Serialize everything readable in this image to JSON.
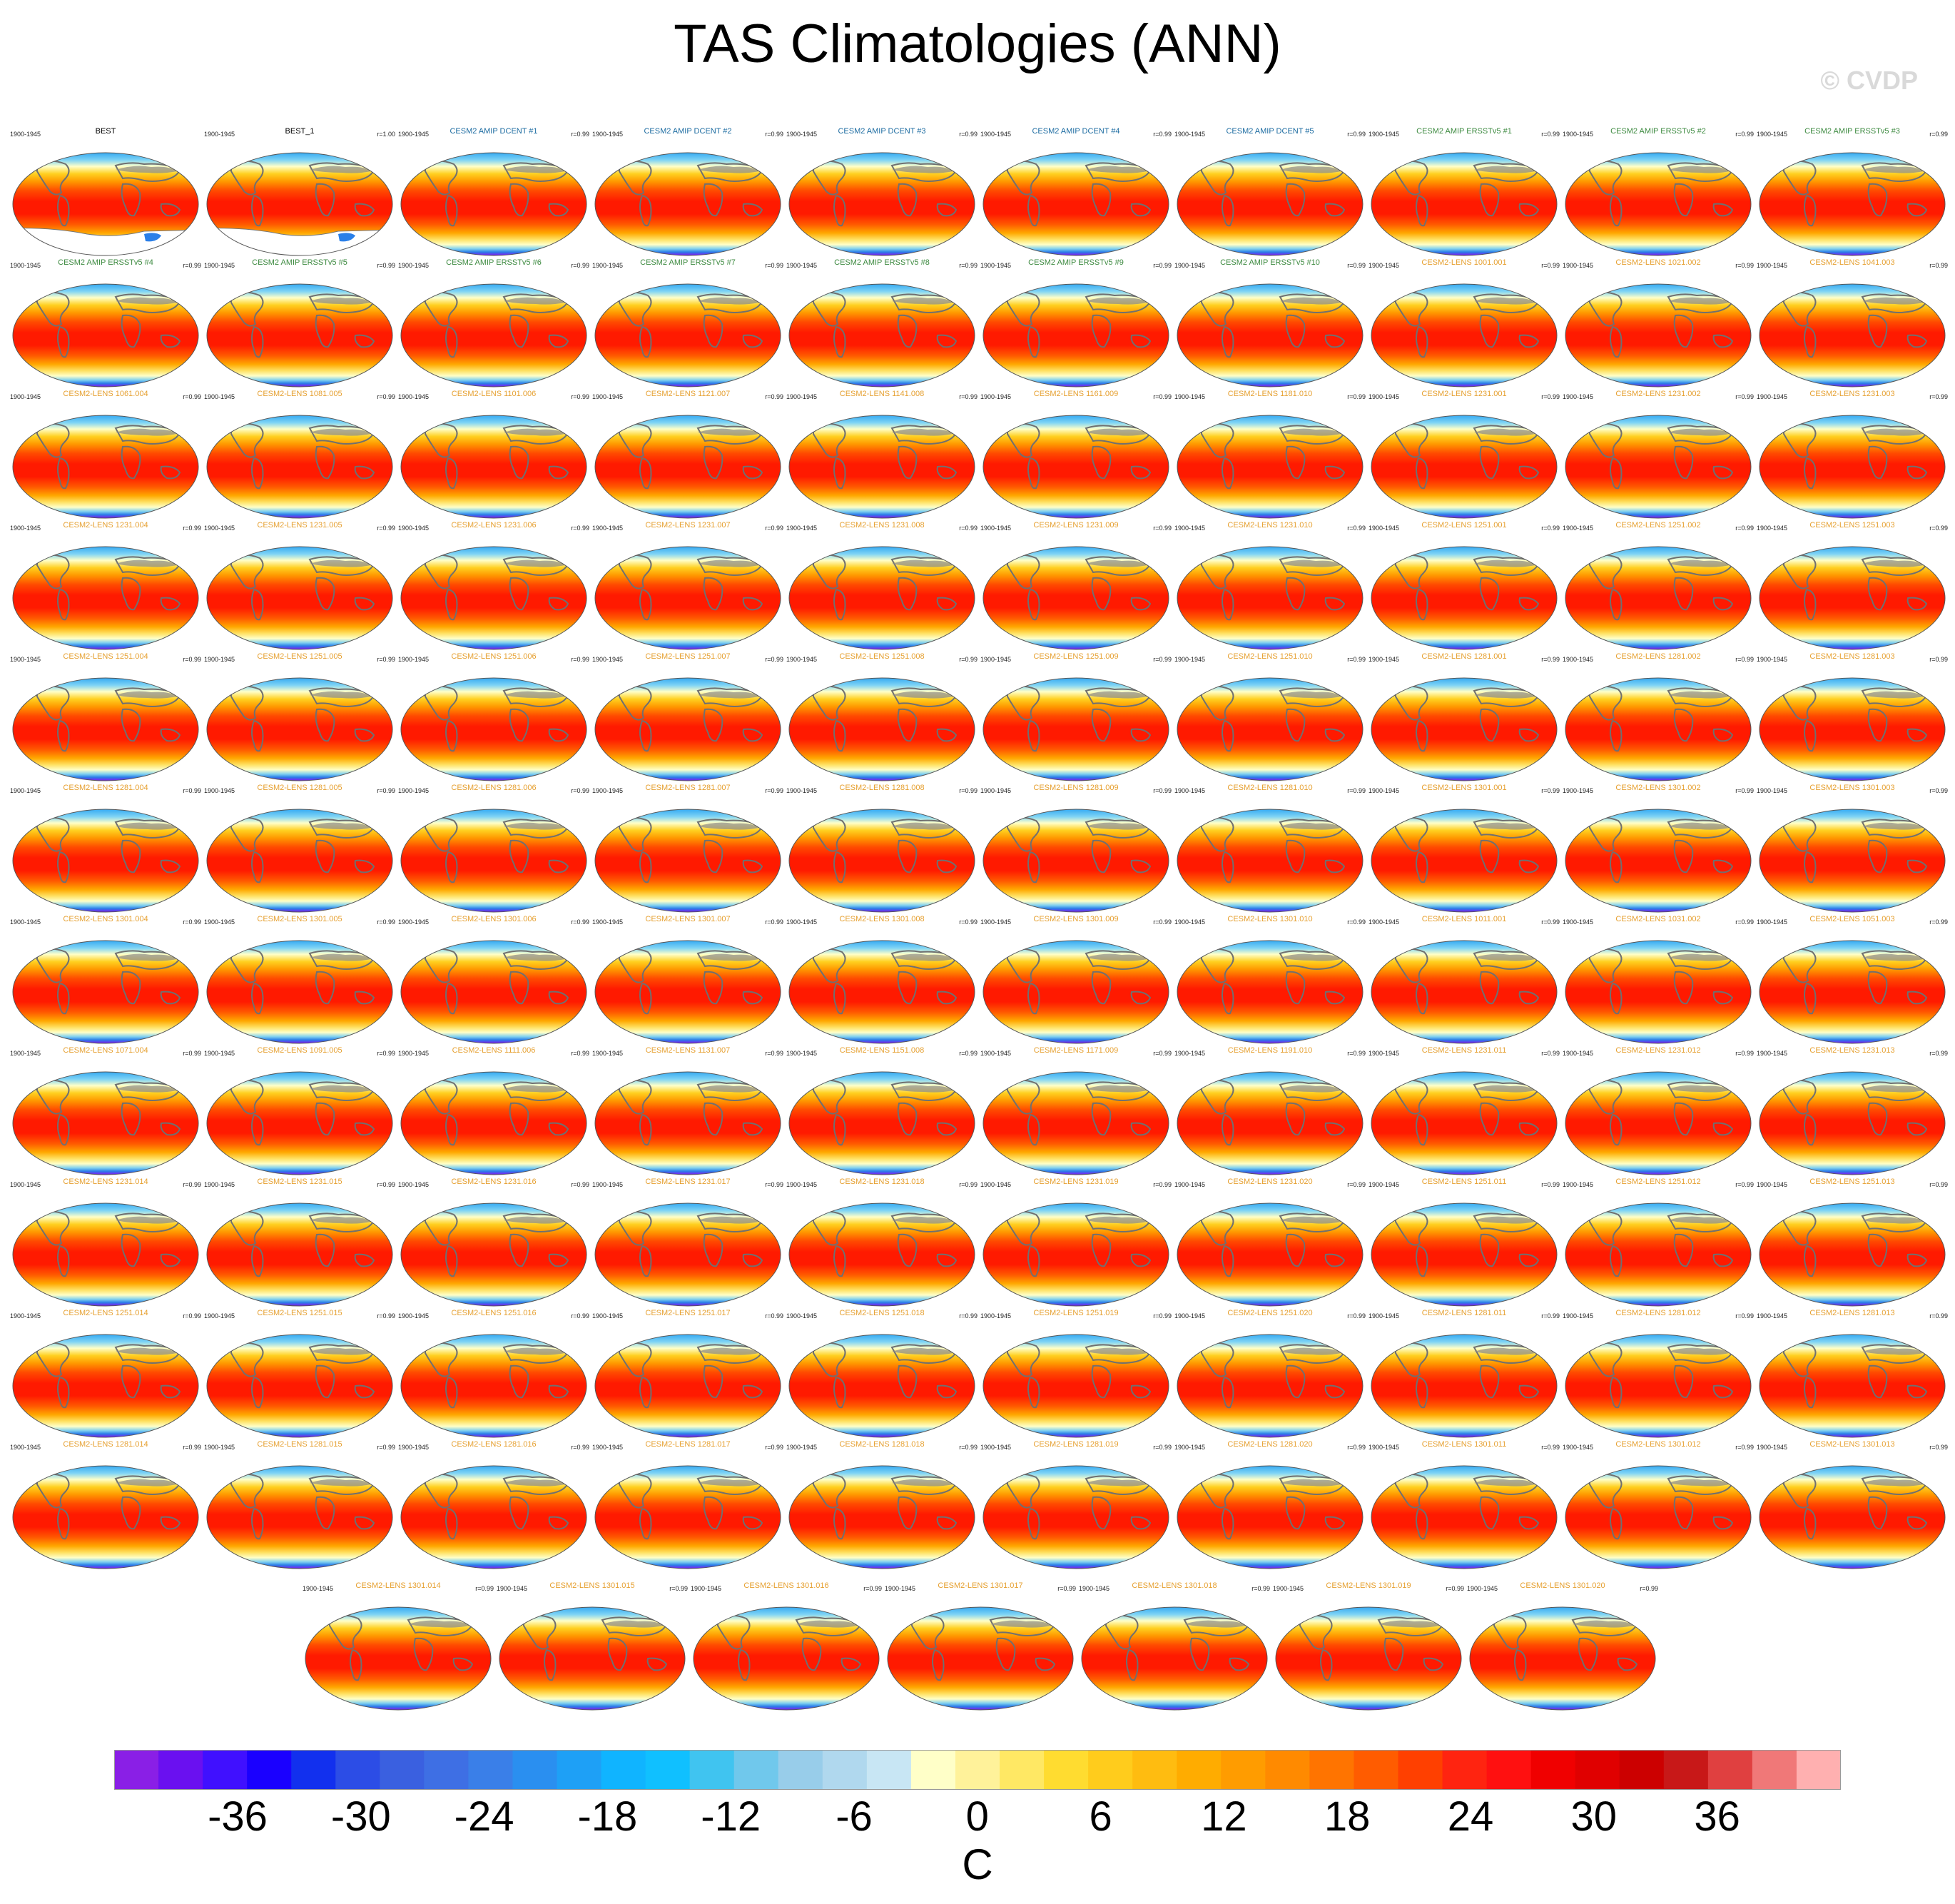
{
  "title": "TAS Climatologies (ANN)",
  "watermark": "© CVDP",
  "chart_data": {
    "type": "heatmap",
    "title": "TAS Climatologies (ANN)",
    "variable": "TAS",
    "season": "ANN",
    "projection": "global map",
    "colorbar": {
      "units": "C",
      "tick_labels": [
        "-36",
        "-30",
        "-24",
        "-18",
        "-12",
        "-6",
        "0",
        "6",
        "12",
        "18",
        "24",
        "30",
        "36"
      ],
      "tick_values": [
        -36,
        -30,
        -24,
        -18,
        -12,
        -6,
        0,
        6,
        12,
        18,
        24,
        30,
        36
      ],
      "colors": [
        "#8a1fe6",
        "#6a10f0",
        "#4010ff",
        "#1a00ff",
        "#1230ee",
        "#2c4de6",
        "#3a60e0",
        "#3e6fe4",
        "#3a7fe8",
        "#2a8ff0",
        "#1ea0f6",
        "#10b4ff",
        "#10c0ff",
        "#40c4f0",
        "#70c8ec",
        "#98cdea",
        "#b0d8ee",
        "#c8e6f4",
        "#ffffc8",
        "#fff29a",
        "#ffe864",
        "#ffdc30",
        "#ffcc1c",
        "#ffbc10",
        "#ffac00",
        "#ff9c00",
        "#ff8a00",
        "#ff7400",
        "#ff5c00",
        "#ff4000",
        "#ff2410",
        "#ff1010",
        "#f00000",
        "#e00000",
        "#cc0000",
        "#c81818",
        "#e04040",
        "#f07878",
        "#ffb0b0"
      ]
    },
    "title_colors": {
      "obs": "#000000",
      "dcent": "#1a6aa0",
      "ersst": "#3d8a40",
      "lens": "#e6a030"
    },
    "panels": [
      {
        "title": "BEST",
        "years": "1900-1945",
        "r": "",
        "group": "obs",
        "missing": true
      },
      {
        "title": "BEST_1",
        "years": "1900-1945",
        "r": "r=1.00",
        "group": "obs",
        "missing": true
      },
      {
        "title": "CESM2 AMIP DCENT #1",
        "years": "1900-1945",
        "r": "r=0.99",
        "group": "dcent"
      },
      {
        "title": "CESM2 AMIP DCENT #2",
        "years": "1900-1945",
        "r": "r=0.99",
        "group": "dcent"
      },
      {
        "title": "CESM2 AMIP DCENT #3",
        "years": "1900-1945",
        "r": "r=0.99",
        "group": "dcent"
      },
      {
        "title": "CESM2 AMIP DCENT #4",
        "years": "1900-1945",
        "r": "r=0.99",
        "group": "dcent"
      },
      {
        "title": "CESM2 AMIP DCENT #5",
        "years": "1900-1945",
        "r": "r=0.99",
        "group": "dcent"
      },
      {
        "title": "CESM2 AMIP ERSSTv5 #1",
        "years": "1900-1945",
        "r": "r=0.99",
        "group": "ersst"
      },
      {
        "title": "CESM2 AMIP ERSSTv5 #2",
        "years": "1900-1945",
        "r": "r=0.99",
        "group": "ersst"
      },
      {
        "title": "CESM2 AMIP ERSSTv5 #3",
        "years": "1900-1945",
        "r": "r=0.99",
        "group": "ersst"
      },
      {
        "title": "CESM2 AMIP ERSSTv5 #4",
        "years": "1900-1945",
        "r": "r=0.99",
        "group": "ersst"
      },
      {
        "title": "CESM2 AMIP ERSSTv5 #5",
        "years": "1900-1945",
        "r": "r=0.99",
        "group": "ersst"
      },
      {
        "title": "CESM2 AMIP ERSSTv5 #6",
        "years": "1900-1945",
        "r": "r=0.99",
        "group": "ersst"
      },
      {
        "title": "CESM2 AMIP ERSSTv5 #7",
        "years": "1900-1945",
        "r": "r=0.99",
        "group": "ersst"
      },
      {
        "title": "CESM2 AMIP ERSSTv5 #8",
        "years": "1900-1945",
        "r": "r=0.99",
        "group": "ersst"
      },
      {
        "title": "CESM2 AMIP ERSSTv5 #9",
        "years": "1900-1945",
        "r": "r=0.99",
        "group": "ersst"
      },
      {
        "title": "CESM2 AMIP ERSSTv5 #10",
        "years": "1900-1945",
        "r": "r=0.99",
        "group": "ersst"
      },
      {
        "title": "CESM2-LENS 1001.001",
        "years": "1900-1945",
        "r": "r=0.99",
        "group": "lens"
      },
      {
        "title": "CESM2-LENS 1021.002",
        "years": "1900-1945",
        "r": "r=0.99",
        "group": "lens"
      },
      {
        "title": "CESM2-LENS 1041.003",
        "years": "1900-1945",
        "r": "r=0.99",
        "group": "lens"
      },
      {
        "title": "CESM2-LENS 1061.004",
        "years": "1900-1945",
        "r": "r=0.99",
        "group": "lens"
      },
      {
        "title": "CESM2-LENS 1081.005",
        "years": "1900-1945",
        "r": "r=0.99",
        "group": "lens"
      },
      {
        "title": "CESM2-LENS 1101.006",
        "years": "1900-1945",
        "r": "r=0.99",
        "group": "lens"
      },
      {
        "title": "CESM2-LENS 1121.007",
        "years": "1900-1945",
        "r": "r=0.99",
        "group": "lens"
      },
      {
        "title": "CESM2-LENS 1141.008",
        "years": "1900-1945",
        "r": "r=0.99",
        "group": "lens"
      },
      {
        "title": "CESM2-LENS 1161.009",
        "years": "1900-1945",
        "r": "r=0.99",
        "group": "lens"
      },
      {
        "title": "CESM2-LENS 1181.010",
        "years": "1900-1945",
        "r": "r=0.99",
        "group": "lens"
      },
      {
        "title": "CESM2-LENS 1231.001",
        "years": "1900-1945",
        "r": "r=0.99",
        "group": "lens"
      },
      {
        "title": "CESM2-LENS 1231.002",
        "years": "1900-1945",
        "r": "r=0.99",
        "group": "lens"
      },
      {
        "title": "CESM2-LENS 1231.003",
        "years": "1900-1945",
        "r": "r=0.99",
        "group": "lens"
      },
      {
        "title": "CESM2-LENS 1231.004",
        "years": "1900-1945",
        "r": "r=0.99",
        "group": "lens"
      },
      {
        "title": "CESM2-LENS 1231.005",
        "years": "1900-1945",
        "r": "r=0.99",
        "group": "lens"
      },
      {
        "title": "CESM2-LENS 1231.006",
        "years": "1900-1945",
        "r": "r=0.99",
        "group": "lens"
      },
      {
        "title": "CESM2-LENS 1231.007",
        "years": "1900-1945",
        "r": "r=0.99",
        "group": "lens"
      },
      {
        "title": "CESM2-LENS 1231.008",
        "years": "1900-1945",
        "r": "r=0.99",
        "group": "lens"
      },
      {
        "title": "CESM2-LENS 1231.009",
        "years": "1900-1945",
        "r": "r=0.99",
        "group": "lens"
      },
      {
        "title": "CESM2-LENS 1231.010",
        "years": "1900-1945",
        "r": "r=0.99",
        "group": "lens"
      },
      {
        "title": "CESM2-LENS 1251.001",
        "years": "1900-1945",
        "r": "r=0.99",
        "group": "lens"
      },
      {
        "title": "CESM2-LENS 1251.002",
        "years": "1900-1945",
        "r": "r=0.99",
        "group": "lens"
      },
      {
        "title": "CESM2-LENS 1251.003",
        "years": "1900-1945",
        "r": "r=0.99",
        "group": "lens"
      },
      {
        "title": "CESM2-LENS 1251.004",
        "years": "1900-1945",
        "r": "r=0.99",
        "group": "lens"
      },
      {
        "title": "CESM2-LENS 1251.005",
        "years": "1900-1945",
        "r": "r=0.99",
        "group": "lens"
      },
      {
        "title": "CESM2-LENS 1251.006",
        "years": "1900-1945",
        "r": "r=0.99",
        "group": "lens"
      },
      {
        "title": "CESM2-LENS 1251.007",
        "years": "1900-1945",
        "r": "r=0.99",
        "group": "lens"
      },
      {
        "title": "CESM2-LENS 1251.008",
        "years": "1900-1945",
        "r": "r=0.99",
        "group": "lens"
      },
      {
        "title": "CESM2-LENS 1251.009",
        "years": "1900-1945",
        "r": "r=0.99",
        "group": "lens"
      },
      {
        "title": "CESM2-LENS 1251.010",
        "years": "1900-1945",
        "r": "r=0.99",
        "group": "lens"
      },
      {
        "title": "CESM2-LENS 1281.001",
        "years": "1900-1945",
        "r": "r=0.99",
        "group": "lens"
      },
      {
        "title": "CESM2-LENS 1281.002",
        "years": "1900-1945",
        "r": "r=0.99",
        "group": "lens"
      },
      {
        "title": "CESM2-LENS 1281.003",
        "years": "1900-1945",
        "r": "r=0.99",
        "group": "lens"
      },
      {
        "title": "CESM2-LENS 1281.004",
        "years": "1900-1945",
        "r": "r=0.99",
        "group": "lens"
      },
      {
        "title": "CESM2-LENS 1281.005",
        "years": "1900-1945",
        "r": "r=0.99",
        "group": "lens"
      },
      {
        "title": "CESM2-LENS 1281.006",
        "years": "1900-1945",
        "r": "r=0.99",
        "group": "lens"
      },
      {
        "title": "CESM2-LENS 1281.007",
        "years": "1900-1945",
        "r": "r=0.99",
        "group": "lens"
      },
      {
        "title": "CESM2-LENS 1281.008",
        "years": "1900-1945",
        "r": "r=0.99",
        "group": "lens"
      },
      {
        "title": "CESM2-LENS 1281.009",
        "years": "1900-1945",
        "r": "r=0.99",
        "group": "lens"
      },
      {
        "title": "CESM2-LENS 1281.010",
        "years": "1900-1945",
        "r": "r=0.99",
        "group": "lens"
      },
      {
        "title": "CESM2-LENS 1301.001",
        "years": "1900-1945",
        "r": "r=0.99",
        "group": "lens"
      },
      {
        "title": "CESM2-LENS 1301.002",
        "years": "1900-1945",
        "r": "r=0.99",
        "group": "lens"
      },
      {
        "title": "CESM2-LENS 1301.003",
        "years": "1900-1945",
        "r": "r=0.99",
        "group": "lens"
      },
      {
        "title": "CESM2-LENS 1301.004",
        "years": "1900-1945",
        "r": "r=0.99",
        "group": "lens"
      },
      {
        "title": "CESM2-LENS 1301.005",
        "years": "1900-1945",
        "r": "r=0.99",
        "group": "lens"
      },
      {
        "title": "CESM2-LENS 1301.006",
        "years": "1900-1945",
        "r": "r=0.99",
        "group": "lens"
      },
      {
        "title": "CESM2-LENS 1301.007",
        "years": "1900-1945",
        "r": "r=0.99",
        "group": "lens"
      },
      {
        "title": "CESM2-LENS 1301.008",
        "years": "1900-1945",
        "r": "r=0.99",
        "group": "lens"
      },
      {
        "title": "CESM2-LENS 1301.009",
        "years": "1900-1945",
        "r": "r=0.99",
        "group": "lens"
      },
      {
        "title": "CESM2-LENS 1301.010",
        "years": "1900-1945",
        "r": "r=0.99",
        "group": "lens"
      },
      {
        "title": "CESM2-LENS 1011.001",
        "years": "1900-1945",
        "r": "r=0.99",
        "group": "lens"
      },
      {
        "title": "CESM2-LENS 1031.002",
        "years": "1900-1945",
        "r": "r=0.99",
        "group": "lens"
      },
      {
        "title": "CESM2-LENS 1051.003",
        "years": "1900-1945",
        "r": "r=0.99",
        "group": "lens"
      },
      {
        "title": "CESM2-LENS 1071.004",
        "years": "1900-1945",
        "r": "r=0.99",
        "group": "lens"
      },
      {
        "title": "CESM2-LENS 1091.005",
        "years": "1900-1945",
        "r": "r=0.99",
        "group": "lens"
      },
      {
        "title": "CESM2-LENS 1111.006",
        "years": "1900-1945",
        "r": "r=0.99",
        "group": "lens"
      },
      {
        "title": "CESM2-LENS 1131.007",
        "years": "1900-1945",
        "r": "r=0.99",
        "group": "lens"
      },
      {
        "title": "CESM2-LENS 1151.008",
        "years": "1900-1945",
        "r": "r=0.99",
        "group": "lens"
      },
      {
        "title": "CESM2-LENS 1171.009",
        "years": "1900-1945",
        "r": "r=0.99",
        "group": "lens"
      },
      {
        "title": "CESM2-LENS 1191.010",
        "years": "1900-1945",
        "r": "r=0.99",
        "group": "lens"
      },
      {
        "title": "CESM2-LENS 1231.011",
        "years": "1900-1945",
        "r": "r=0.99",
        "group": "lens"
      },
      {
        "title": "CESM2-LENS 1231.012",
        "years": "1900-1945",
        "r": "r=0.99",
        "group": "lens"
      },
      {
        "title": "CESM2-LENS 1231.013",
        "years": "1900-1945",
        "r": "r=0.99",
        "group": "lens"
      },
      {
        "title": "CESM2-LENS 1231.014",
        "years": "1900-1945",
        "r": "r=0.99",
        "group": "lens"
      },
      {
        "title": "CESM2-LENS 1231.015",
        "years": "1900-1945",
        "r": "r=0.99",
        "group": "lens"
      },
      {
        "title": "CESM2-LENS 1231.016",
        "years": "1900-1945",
        "r": "r=0.99",
        "group": "lens"
      },
      {
        "title": "CESM2-LENS 1231.017",
        "years": "1900-1945",
        "r": "r=0.99",
        "group": "lens"
      },
      {
        "title": "CESM2-LENS 1231.018",
        "years": "1900-1945",
        "r": "r=0.99",
        "group": "lens"
      },
      {
        "title": "CESM2-LENS 1231.019",
        "years": "1900-1945",
        "r": "r=0.99",
        "group": "lens"
      },
      {
        "title": "CESM2-LENS 1231.020",
        "years": "1900-1945",
        "r": "r=0.99",
        "group": "lens"
      },
      {
        "title": "CESM2-LENS 1251.011",
        "years": "1900-1945",
        "r": "r=0.99",
        "group": "lens"
      },
      {
        "title": "CESM2-LENS 1251.012",
        "years": "1900-1945",
        "r": "r=0.99",
        "group": "lens"
      },
      {
        "title": "CESM2-LENS 1251.013",
        "years": "1900-1945",
        "r": "r=0.99",
        "group": "lens"
      },
      {
        "title": "CESM2-LENS 1251.014",
        "years": "1900-1945",
        "r": "r=0.99",
        "group": "lens"
      },
      {
        "title": "CESM2-LENS 1251.015",
        "years": "1900-1945",
        "r": "r=0.99",
        "group": "lens"
      },
      {
        "title": "CESM2-LENS 1251.016",
        "years": "1900-1945",
        "r": "r=0.99",
        "group": "lens"
      },
      {
        "title": "CESM2-LENS 1251.017",
        "years": "1900-1945",
        "r": "r=0.99",
        "group": "lens"
      },
      {
        "title": "CESM2-LENS 1251.018",
        "years": "1900-1945",
        "r": "r=0.99",
        "group": "lens"
      },
      {
        "title": "CESM2-LENS 1251.019",
        "years": "1900-1945",
        "r": "r=0.99",
        "group": "lens"
      },
      {
        "title": "CESM2-LENS 1251.020",
        "years": "1900-1945",
        "r": "r=0.99",
        "group": "lens"
      },
      {
        "title": "CESM2-LENS 1281.011",
        "years": "1900-1945",
        "r": "r=0.99",
        "group": "lens"
      },
      {
        "title": "CESM2-LENS 1281.012",
        "years": "1900-1945",
        "r": "r=0.99",
        "group": "lens"
      },
      {
        "title": "CESM2-LENS 1281.013",
        "years": "1900-1945",
        "r": "r=0.99",
        "group": "lens"
      },
      {
        "title": "CESM2-LENS 1281.014",
        "years": "1900-1945",
        "r": "r=0.99",
        "group": "lens"
      },
      {
        "title": "CESM2-LENS 1281.015",
        "years": "1900-1945",
        "r": "r=0.99",
        "group": "lens"
      },
      {
        "title": "CESM2-LENS 1281.016",
        "years": "1900-1945",
        "r": "r=0.99",
        "group": "lens"
      },
      {
        "title": "CESM2-LENS 1281.017",
        "years": "1900-1945",
        "r": "r=0.99",
        "group": "lens"
      },
      {
        "title": "CESM2-LENS 1281.018",
        "years": "1900-1945",
        "r": "r=0.99",
        "group": "lens"
      },
      {
        "title": "CESM2-LENS 1281.019",
        "years": "1900-1945",
        "r": "r=0.99",
        "group": "lens"
      },
      {
        "title": "CESM2-LENS 1281.020",
        "years": "1900-1945",
        "r": "r=0.99",
        "group": "lens"
      },
      {
        "title": "CESM2-LENS 1301.011",
        "years": "1900-1945",
        "r": "r=0.99",
        "group": "lens"
      },
      {
        "title": "CESM2-LENS 1301.012",
        "years": "1900-1945",
        "r": "r=0.99",
        "group": "lens"
      },
      {
        "title": "CESM2-LENS 1301.013",
        "years": "1900-1945",
        "r": "r=0.99",
        "group": "lens"
      },
      {
        "title": "CESM2-LENS 1301.014",
        "years": "1900-1945",
        "r": "r=0.99",
        "group": "lens"
      },
      {
        "title": "CESM2-LENS 1301.015",
        "years": "1900-1945",
        "r": "r=0.99",
        "group": "lens"
      },
      {
        "title": "CESM2-LENS 1301.016",
        "years": "1900-1945",
        "r": "r=0.99",
        "group": "lens"
      },
      {
        "title": "CESM2-LENS 1301.017",
        "years": "1900-1945",
        "r": "r=0.99",
        "group": "lens"
      },
      {
        "title": "CESM2-LENS 1301.018",
        "years": "1900-1945",
        "r": "r=0.99",
        "group": "lens"
      },
      {
        "title": "CESM2-LENS 1301.019",
        "years": "1900-1945",
        "r": "r=0.99",
        "group": "lens"
      },
      {
        "title": "CESM2-LENS 1301.020",
        "years": "1900-1945",
        "r": "r=0.99",
        "group": "lens"
      }
    ]
  }
}
